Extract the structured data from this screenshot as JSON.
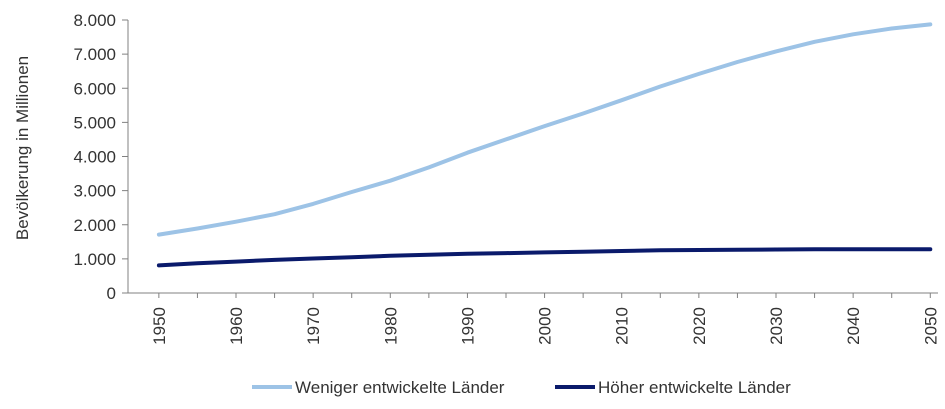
{
  "chart_data": {
    "type": "line",
    "title": "",
    "xlabel": "",
    "ylabel": "Bevölkerung in Millionen",
    "x": [
      1950,
      1955,
      1960,
      1965,
      1970,
      1975,
      1980,
      1985,
      1990,
      1995,
      2000,
      2005,
      2010,
      2015,
      2020,
      2025,
      2030,
      2035,
      2040,
      2045,
      2050
    ],
    "x_ticks": [
      "1950",
      "1960",
      "1970",
      "1980",
      "1990",
      "2000",
      "2010",
      "2020",
      "2030",
      "2040",
      "2050"
    ],
    "y_ticks": [
      "0",
      "1.000",
      "2.000",
      "3.000",
      "4.000",
      "5.000",
      "6.000",
      "7.000",
      "8.000"
    ],
    "ylim": [
      0,
      8000
    ],
    "xlim": [
      1946,
      2051
    ],
    "grid": false,
    "legend_position": "bottom",
    "series": [
      {
        "name": "Weniger entwickelte Länder",
        "color": "#9dc3e6",
        "values": [
          1710,
          1890,
          2090,
          2310,
          2610,
          2960,
          3290,
          3680,
          4110,
          4500,
          4890,
          5260,
          5650,
          6050,
          6420,
          6770,
          7080,
          7360,
          7580,
          7750,
          7870
        ]
      },
      {
        "name": "Höher entwickelte Länder",
        "color": "#0a1a6b",
        "values": [
          810,
          870,
          920,
          970,
          1010,
          1050,
          1090,
          1120,
          1150,
          1170,
          1190,
          1210,
          1230,
          1250,
          1260,
          1270,
          1275,
          1280,
          1280,
          1280,
          1280
        ]
      }
    ]
  }
}
